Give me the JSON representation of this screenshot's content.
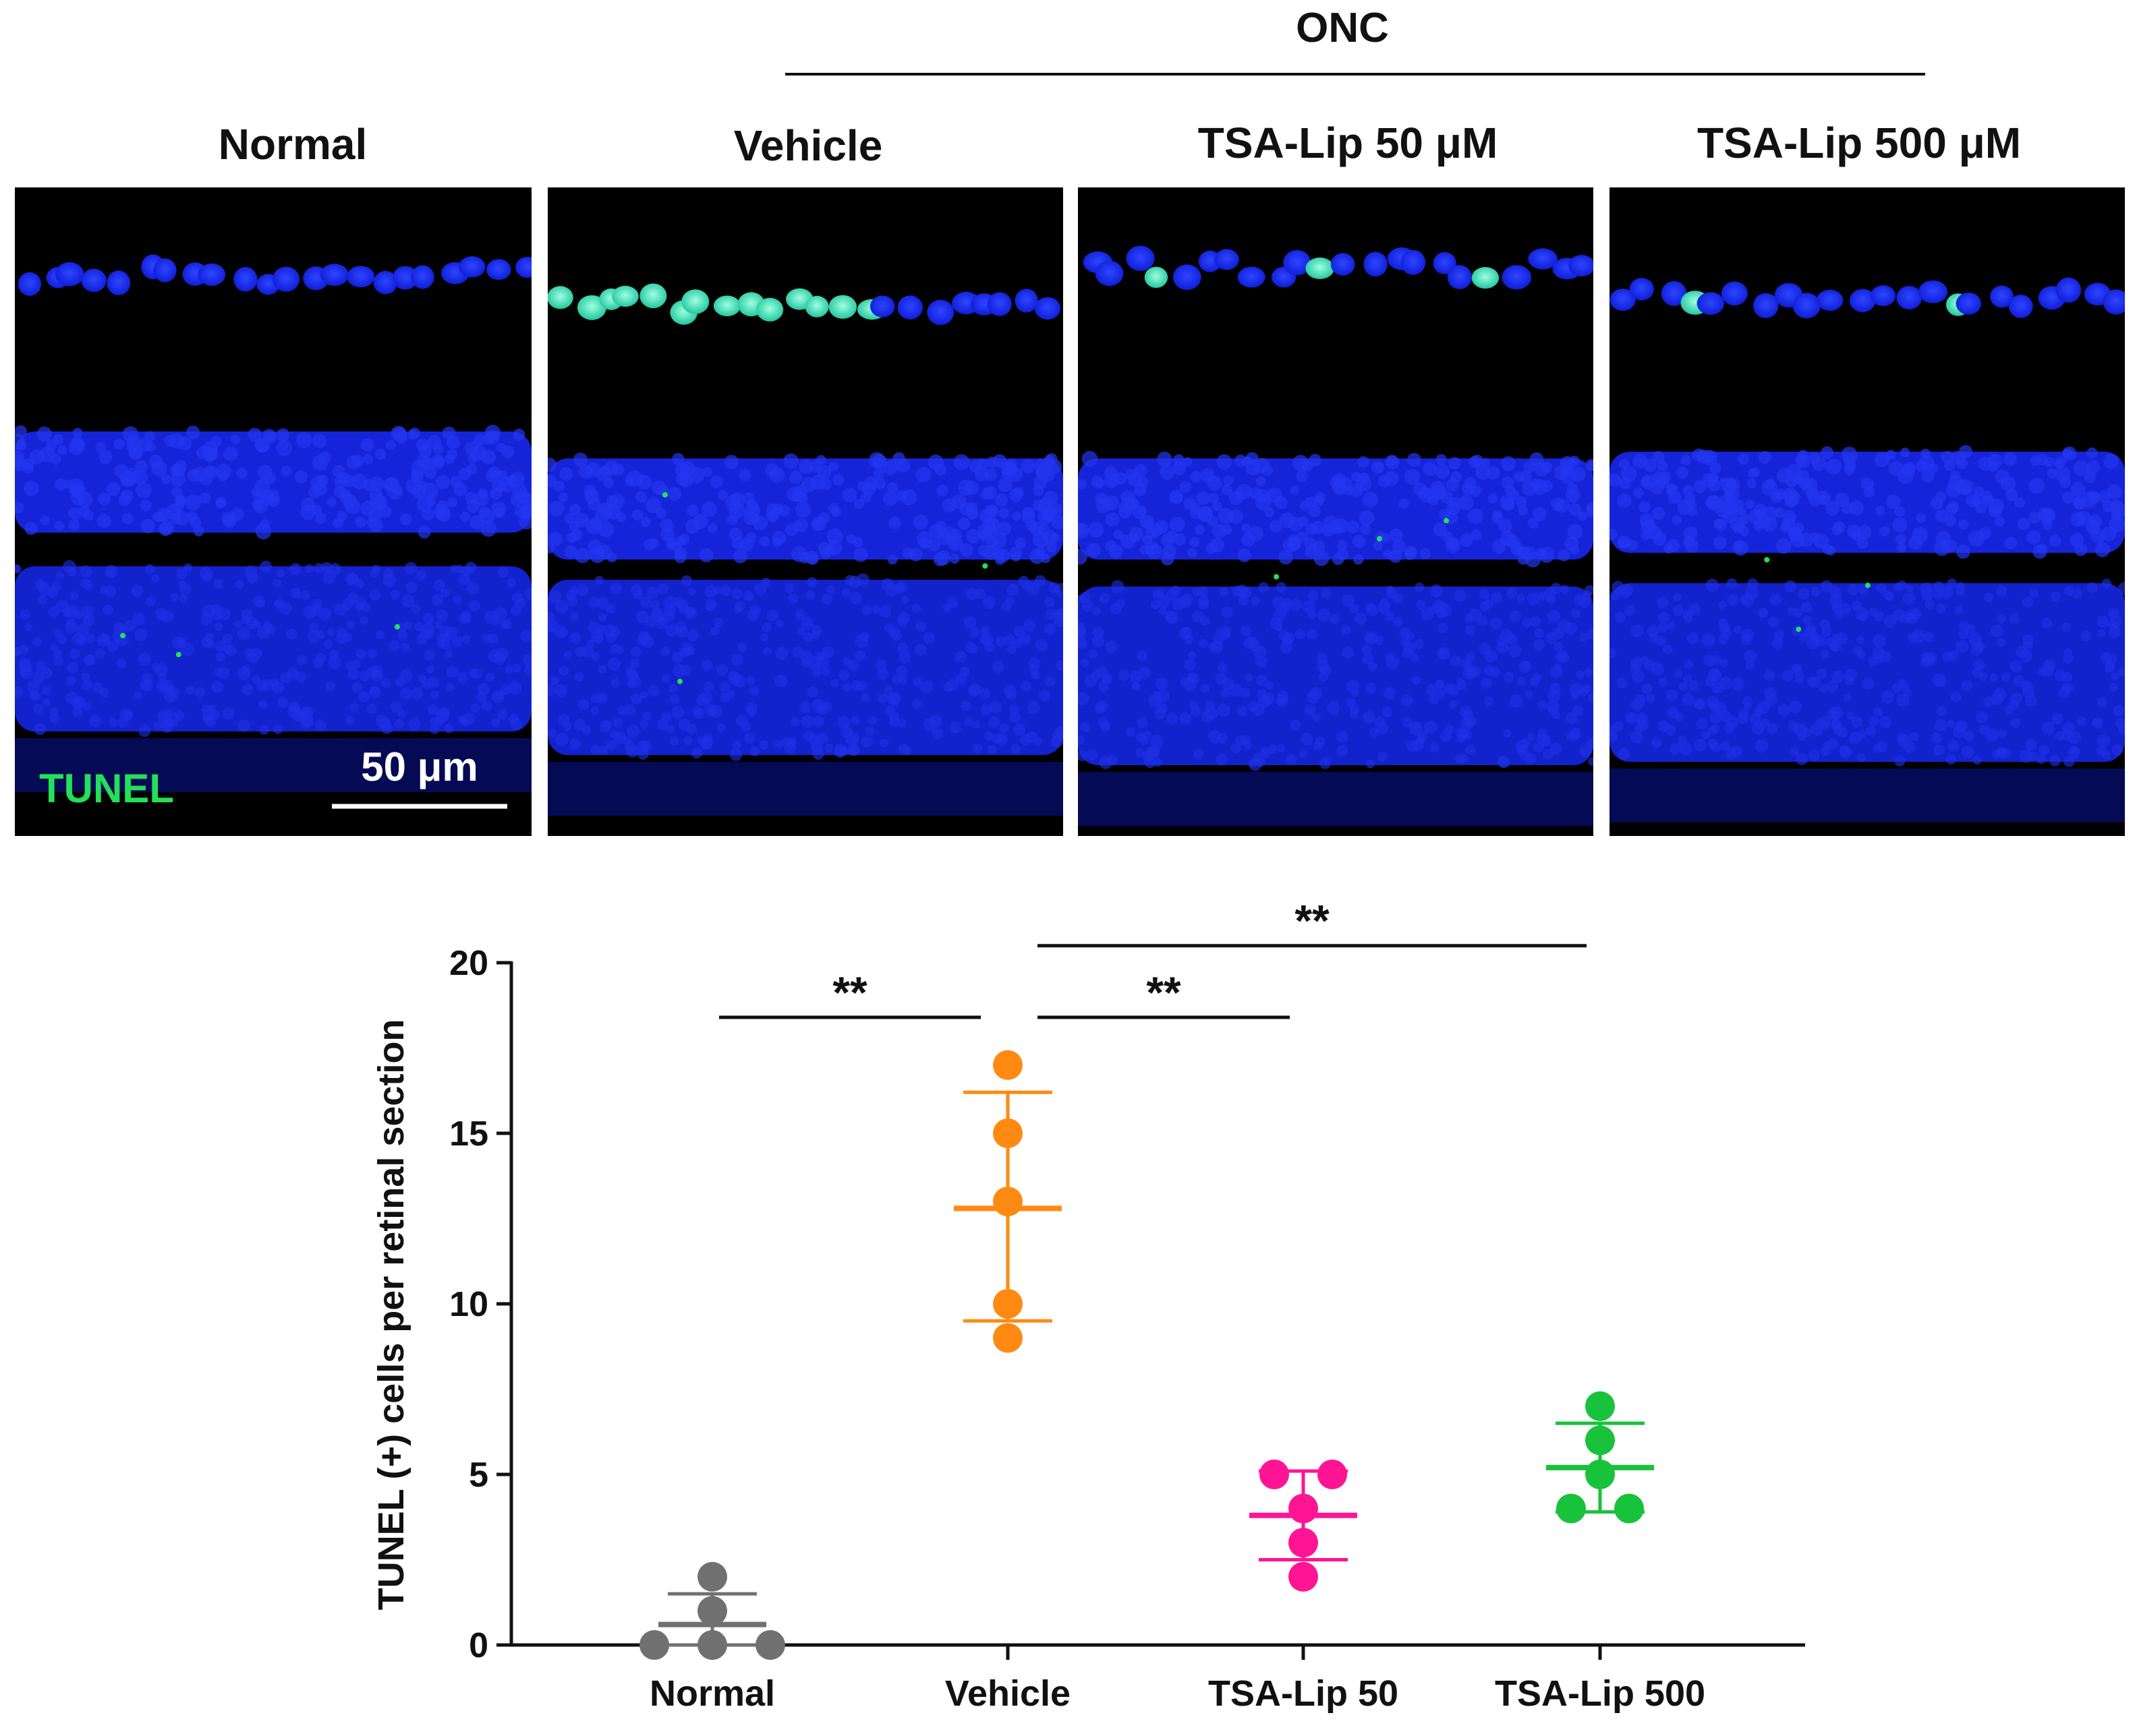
{
  "header": {
    "group_label": "ONC",
    "panels": [
      {
        "label": "Normal"
      },
      {
        "label": "Vehicle"
      },
      {
        "label": "TSA-Lip 50 μM"
      },
      {
        "label": "TSA-Lip 500 μM"
      }
    ]
  },
  "micrograph": {
    "stain_label": "TUNEL",
    "scale_bar_label": "50 μm",
    "colors": {
      "nuclei": "#1a2bff",
      "tunel": "#22e05a",
      "background": "#000000"
    }
  },
  "chart_data": {
    "type": "scatter",
    "title": "",
    "xlabel": "",
    "ylabel": "TUNEL (+) cells per retinal section",
    "ylim": [
      0,
      20
    ],
    "yticks": [
      0,
      5,
      10,
      15,
      20
    ],
    "categories": [
      "Normal",
      "Vehicle",
      "TSA-Lip 50",
      "TSA-Lip 500"
    ],
    "groups": [
      {
        "name": "Normal",
        "color": "#707070",
        "points": [
          0,
          0,
          0,
          1,
          2
        ],
        "mean": 0.6,
        "sd_low": 0.0,
        "sd_high": 1.5
      },
      {
        "name": "Vehicle",
        "color": "#ff8a12",
        "points": [
          17,
          15,
          13,
          10,
          9
        ],
        "mean": 12.8,
        "sd_low": 9.5,
        "sd_high": 16.2
      },
      {
        "name": "TSA-Lip 50",
        "color": "#ff1493",
        "points": [
          5,
          5,
          4,
          3,
          2
        ],
        "mean": 3.8,
        "sd_low": 2.5,
        "sd_high": 5.1
      },
      {
        "name": "TSA-Lip 500",
        "color": "#18c23a",
        "points": [
          7,
          6,
          5,
          4,
          4
        ],
        "mean": 5.2,
        "sd_low": 3.9,
        "sd_high": 6.5
      }
    ],
    "significance": [
      {
        "from": "Normal",
        "to": "Vehicle",
        "label": "**",
        "y": 18.4
      },
      {
        "from": "Vehicle",
        "to": "TSA-Lip 50",
        "label": "**",
        "y": 18.4
      },
      {
        "from": "Vehicle",
        "to": "TSA-Lip 500",
        "label": "**",
        "y": 20.5
      }
    ]
  }
}
